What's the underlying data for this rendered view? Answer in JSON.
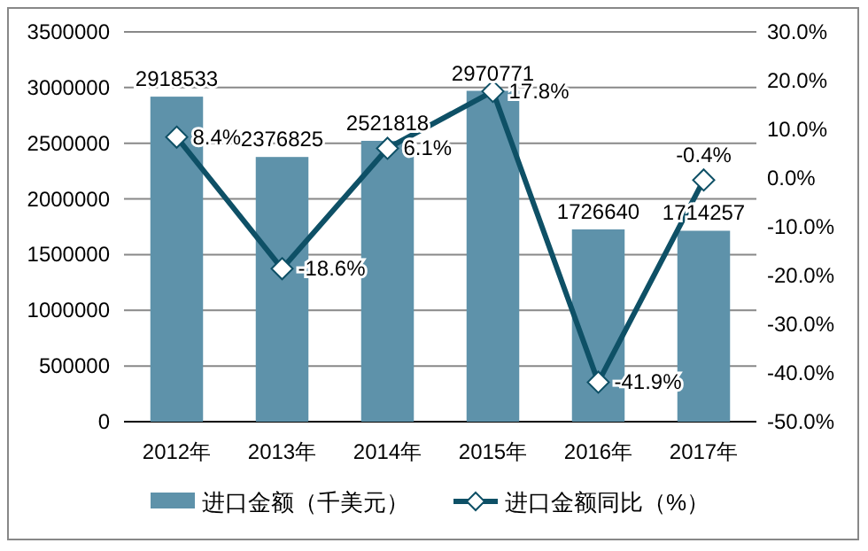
{
  "chart_data": {
    "type": "bar",
    "categories": [
      "2012年",
      "2013年",
      "2014年",
      "2015年",
      "2016年",
      "2017年"
    ],
    "series": [
      {
        "name": "进口金额（千美元）",
        "color": "#5e92aa",
        "values": [
          2918533,
          2376825,
          2521818,
          2970771,
          1726640,
          1714257
        ],
        "value_labels": [
          "2918533",
          "2376825",
          "2521818",
          "2970771",
          "1726640",
          "1714257"
        ]
      },
      {
        "name": "进口金额同比（%）",
        "type": "line",
        "axis": "y2",
        "color": "#0e5066",
        "marker": "diamond",
        "values": [
          8.4,
          -18.6,
          6.1,
          17.8,
          -41.9,
          -0.4
        ],
        "value_labels": [
          "8.4%",
          "-18.6%",
          "6.1%",
          "17.8%",
          "-41.9%",
          "-0.4%"
        ]
      }
    ],
    "ylim": [
      0,
      3500000
    ],
    "yticks": [
      0,
      500000,
      1000000,
      1500000,
      2000000,
      2500000,
      3000000,
      3500000
    ],
    "y2lim": [
      -50,
      30
    ],
    "y2ticks": [
      {
        "value": -50,
        "label": "-50.0%"
      },
      {
        "value": -40,
        "label": "-40.0%"
      },
      {
        "value": -30,
        "label": "-30.0%"
      },
      {
        "value": -20,
        "label": "-20.0%"
      },
      {
        "value": -10,
        "label": "-10.0%"
      },
      {
        "value": 0,
        "label": "0.0%"
      },
      {
        "value": 10,
        "label": "10.0%"
      },
      {
        "value": 20,
        "label": "20.0%"
      },
      {
        "value": 30,
        "label": "30.0%"
      }
    ],
    "grid": "y",
    "legend": "bottom"
  }
}
